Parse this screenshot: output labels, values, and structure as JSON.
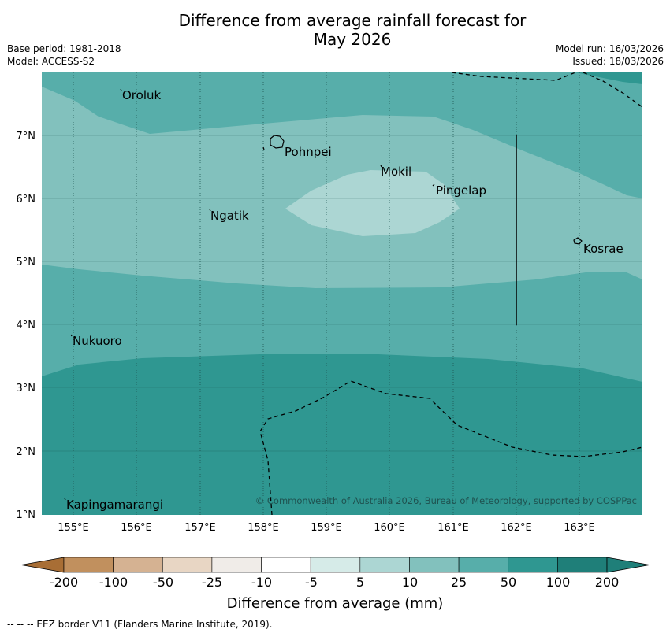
{
  "title_line1": "Difference from average rainfall forecast for",
  "title_line2": "May 2026",
  "base_period": "Base period: 1981-2018",
  "model": "Model: ACCESS-S2",
  "model_run": "Model run: 16/03/2026",
  "issued": "Issued: 18/03/2026",
  "copyright": "© Commonwealth of Australia 2026, Bureau of Meteorology, supported by COSPPac",
  "lat_labels": [
    "7°N",
    "6°N",
    "5°N",
    "4°N",
    "3°N",
    "2°N",
    "1°N"
  ],
  "lon_labels": [
    "155°E",
    "156°E",
    "157°E",
    "158°E",
    "159°E",
    "160°E",
    "161°E",
    "162°E",
    "163°E"
  ],
  "places": [
    "Oroluk",
    "Pohnpei",
    "Mokil",
    "Pingelap",
    "Ngatik",
    "Kosrae",
    "Nukuoro",
    "Kapingamarangi"
  ],
  "colorbar": {
    "ticks": [
      "-200",
      "-100",
      "-50",
      "-25",
      "-10",
      "-5",
      "5",
      "10",
      "25",
      "50",
      "100",
      "200"
    ],
    "colors": [
      "#a86e35",
      "#c1905e",
      "#d5b292",
      "#e8d6c4",
      "#f0ece8",
      "#ffffff",
      "#d6ebe8",
      "#acd6d3",
      "#82c1bd",
      "#57aeaa",
      "#2f9791",
      "#1f7f79"
    ],
    "label": "Difference from average (mm)"
  },
  "footer": "--  --  -- EEZ border V11 (Flanders Marine Institute, 2019)."
}
